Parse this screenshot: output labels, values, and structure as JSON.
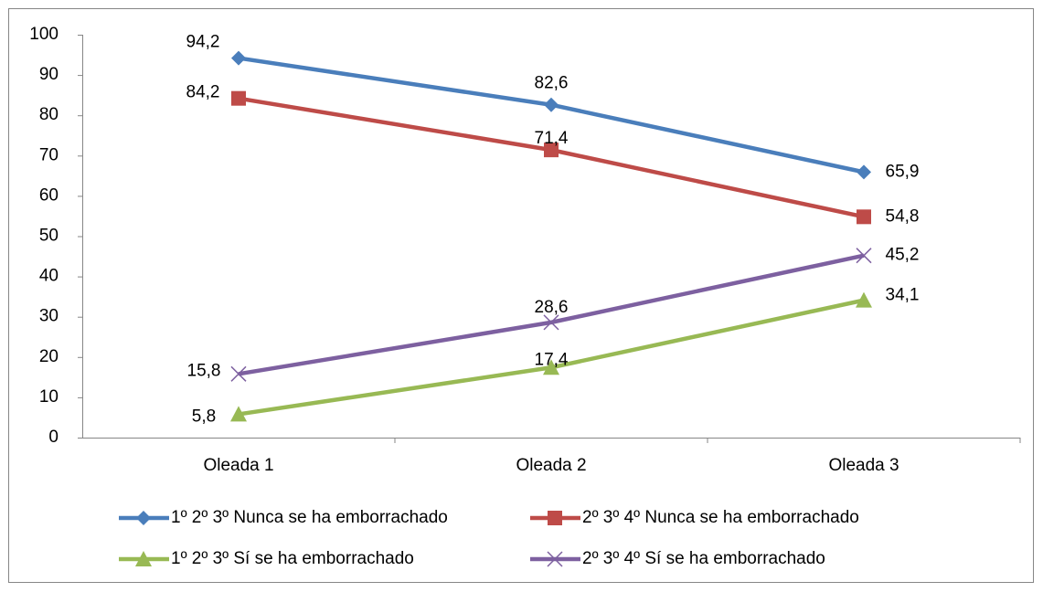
{
  "chart_data": {
    "type": "line",
    "categories": [
      "Oleada 1",
      "Oleada 2",
      "Oleada 3"
    ],
    "series": [
      {
        "name": "1º 2º 3º Nunca se ha emborrachado",
        "color": "#4a7ebb",
        "marker": "diamond",
        "values": [
          94.2,
          82.6,
          65.9
        ],
        "value_labels": [
          "94,2",
          "82,6",
          "65,9"
        ]
      },
      {
        "name": "2º 3º 4º Nunca se ha emborrachado",
        "color": "#be4b48",
        "marker": "square",
        "values": [
          84.2,
          71.4,
          54.8
        ],
        "value_labels": [
          "84,2",
          "71,4",
          "54,8"
        ]
      },
      {
        "name": "1º 2º 3º Sí se ha emborrachado",
        "color": "#98b954",
        "marker": "triangle",
        "values": [
          5.8,
          17.4,
          34.1
        ],
        "value_labels": [
          "5,8",
          "17,4",
          "34,1"
        ]
      },
      {
        "name": "2º 3º 4º Sí se ha emborrachado",
        "color": "#7d60a0",
        "marker": "x",
        "values": [
          15.8,
          28.6,
          45.2
        ],
        "value_labels": [
          "15,8",
          "28,6",
          "45,2"
        ]
      }
    ],
    "ylim": [
      0,
      100
    ],
    "yticks": [
      0,
      10,
      20,
      30,
      40,
      50,
      60,
      70,
      80,
      90,
      100
    ],
    "grid": false,
    "legend": "bottom"
  }
}
